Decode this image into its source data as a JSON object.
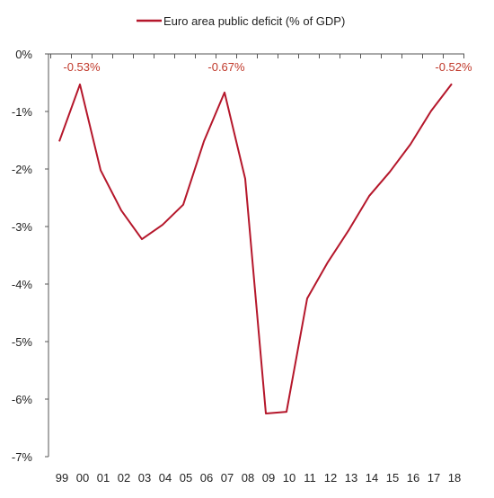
{
  "chart_data": {
    "type": "line",
    "title": "",
    "xlabel": "",
    "ylabel": "",
    "categories": [
      "99",
      "00",
      "01",
      "02",
      "03",
      "04",
      "05",
      "06",
      "07",
      "08",
      "09",
      "10",
      "11",
      "12",
      "13",
      "14",
      "15",
      "16",
      "17",
      "18"
    ],
    "series": [
      {
        "name": "Euro area public deficit (% of GDP)",
        "color": "#b5172b",
        "values": [
          -1.52,
          -0.53,
          -2.02,
          -2.72,
          -3.22,
          -2.97,
          -2.62,
          -1.52,
          -0.67,
          -2.17,
          -6.25,
          -6.22,
          -4.25,
          -3.62,
          -3.07,
          -2.47,
          -2.05,
          -1.57,
          -0.99,
          -0.52
        ]
      }
    ],
    "ylim": [
      -7,
      0
    ],
    "yticks": [
      0,
      -1,
      -2,
      -3,
      -4,
      -5,
      -6,
      -7
    ],
    "ytick_labels": [
      "0%",
      "-1%",
      "-2%",
      "-3%",
      "-4%",
      "-5%",
      "-6%",
      "-7%"
    ],
    "grid": false,
    "legend_position": "top",
    "annotations": [
      {
        "index": 1,
        "text": "-0.53%"
      },
      {
        "index": 8,
        "text": "-0.67%"
      },
      {
        "index": 19,
        "text": "-0.52%"
      }
    ],
    "colors": {
      "line": "#b5172b",
      "annotation": "#c0392b",
      "axis": "#555555"
    }
  }
}
